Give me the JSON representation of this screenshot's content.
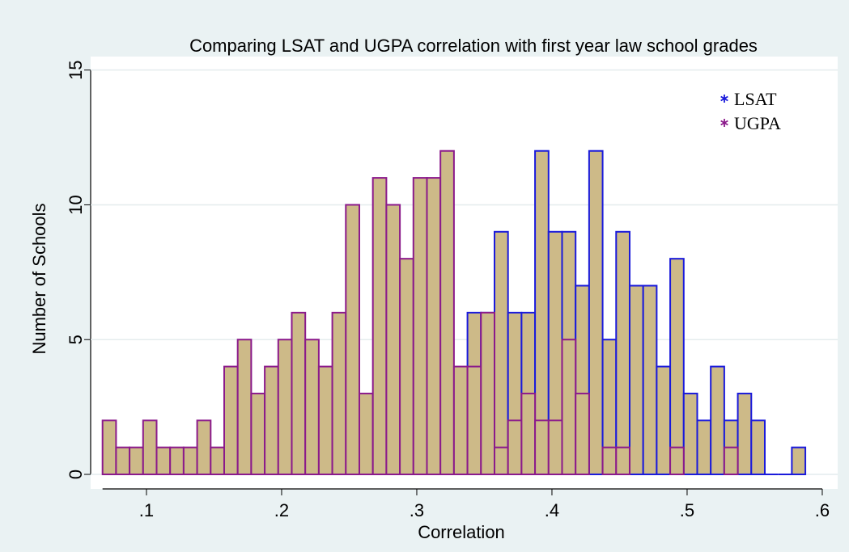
{
  "chart_data": {
    "type": "histogram",
    "title": "Comparing LSAT and UGPA correlation with first year law school grades",
    "x_label": "Correlation",
    "y_label": "Number of Schools",
    "bins": [
      0.0675,
      0.0775,
      0.0875,
      0.0975,
      0.1075,
      0.1175,
      0.1275,
      0.1375,
      0.1475,
      0.1575,
      0.1675,
      0.1775,
      0.1875,
      0.1975,
      0.2075,
      0.2175,
      0.2275,
      0.2375,
      0.2475,
      0.2575,
      0.2675,
      0.2775,
      0.2875,
      0.2975,
      0.3075,
      0.3175,
      0.3275,
      0.3375,
      0.3475,
      0.3575,
      0.3675,
      0.3775,
      0.3875,
      0.3975,
      0.4075,
      0.4175,
      0.4275,
      0.4375,
      0.4475,
      0.4575,
      0.4675,
      0.4775,
      0.4875,
      0.4975,
      0.5075,
      0.5175,
      0.5275,
      0.5375,
      0.5475,
      0.5575,
      0.5675,
      0.5775,
      0.5875
    ],
    "series": [
      {
        "name": "LSAT",
        "color": "#1a1adb",
        "fill": "#cdba88",
        "values": [
          0,
          0,
          0,
          0,
          0,
          0,
          0,
          0,
          0,
          0,
          0,
          0,
          0,
          0,
          0,
          0,
          0,
          0,
          0,
          0,
          0,
          0,
          0,
          0,
          0,
          0,
          0,
          6,
          6,
          9,
          6,
          6,
          12,
          9,
          9,
          7,
          12,
          5,
          9,
          7,
          7,
          4,
          8,
          3,
          2,
          4,
          2,
          3,
          2,
          0,
          0,
          1
        ]
      },
      {
        "name": "UGPA",
        "color": "#8b1a8b",
        "fill": "#cdba88",
        "values": [
          2,
          1,
          1,
          2,
          1,
          1,
          1,
          2,
          1,
          4,
          5,
          3,
          4,
          5,
          6,
          5,
          4,
          6,
          10,
          3,
          11,
          10,
          8,
          11,
          11,
          12,
          4,
          4,
          6,
          1,
          2,
          3,
          2,
          2,
          5,
          3,
          0,
          1,
          1,
          0,
          0,
          0,
          1,
          0,
          0,
          0,
          1,
          0,
          0,
          0,
          0,
          0
        ]
      }
    ],
    "xlim": [
      0.0587,
      0.6114
    ],
    "ylim": [
      -0.54,
      15.5
    ],
    "xticks": [
      {
        "value": 0.1,
        "label": ".1"
      },
      {
        "value": 0.2,
        "label": ".2"
      },
      {
        "value": 0.3,
        "label": ".3"
      },
      {
        "value": 0.4,
        "label": ".4"
      },
      {
        "value": 0.5,
        "label": ".5"
      },
      {
        "value": 0.6,
        "label": ".6"
      }
    ],
    "yticks": [
      0,
      5,
      10,
      15
    ],
    "grid": true,
    "legend": "top-right"
  }
}
